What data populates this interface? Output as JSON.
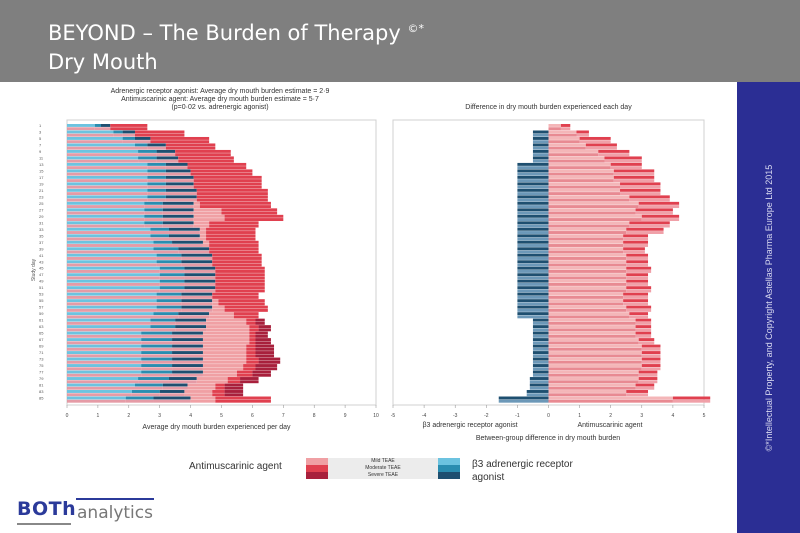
{
  "header": {
    "title_line1": "BEYOND – The Burden of Therapy",
    "title_sup": "©*",
    "title_line2": "Dry Mouth"
  },
  "sidebar": {
    "copyright": "©*Intellectual Property, and Copyright Astellas Pharma Europe Ltd 2015"
  },
  "logo": {
    "part1": "BOTh",
    "part2": "analytics"
  },
  "colors": {
    "header_bg": "#7f7f7f",
    "sidebar_bg": "#2b2e94",
    "anti_mild": "#f0a0a4",
    "anti_moderate": "#e0404f",
    "anti_severe": "#a8203c",
    "b3_mild": "#6cc3e0",
    "b3_moderate": "#2a8db0",
    "b3_severe": "#1e4f70"
  },
  "legend": {
    "left_label": "Antimuscarinic agent",
    "right_label_line1": "β3 adrenergic receptor",
    "right_label_line2": "agonist",
    "entries": [
      "Mild TEAE",
      "Moderate TEAE",
      "Severe TEAE"
    ]
  },
  "chart_data": [
    {
      "type": "bar",
      "orientation": "horizontal-stacked",
      "title_lines": [
        "Adrenergic receptor agonist: Average dry mouth burden estimate = 2·9",
        "Antimuscarinic agent: Average dry mouth burden estimate = 5·7",
        "(p=0·02 vs. adrenergic agonist)"
      ],
      "xlabel": "Average dry mouth burden experienced per day",
      "ylabel": "Study day",
      "xlim": [
        0,
        10
      ],
      "xticks": [
        "0",
        "1",
        "2",
        "3",
        "4",
        "5",
        "6",
        "7",
        "8",
        "9",
        "10"
      ],
      "ytick_labels": [
        "1",
        "3",
        "5",
        "7",
        "9",
        "11",
        "13",
        "15",
        "17",
        "19",
        "21",
        "23",
        "25",
        "27",
        "29",
        "31",
        "33",
        "35",
        "37",
        "39",
        "41",
        "43",
        "45",
        "47",
        "49",
        "51",
        "53",
        "55",
        "57",
        "59",
        "61",
        "63",
        "65",
        "67",
        "69",
        "71",
        "73",
        "75",
        "77",
        "79",
        "81",
        "83",
        "85"
      ],
      "grid": false,
      "days": [
        1,
        3,
        5,
        7,
        9,
        11,
        13,
        15,
        17,
        19,
        21,
        23,
        25,
        27,
        29,
        31,
        33,
        35,
        37,
        39,
        41,
        43,
        45,
        47,
        49,
        51,
        53,
        55,
        57,
        59,
        61,
        63,
        65,
        67,
        69,
        71,
        73,
        75,
        77,
        79,
        81,
        83,
        85
      ],
      "series": [
        {
          "name": "β3 agonist Mild TEAE",
          "values": [
            0.9,
            1.5,
            1.8,
            2.2,
            2.3,
            2.3,
            2.6,
            2.6,
            2.6,
            2.6,
            2.6,
            2.6,
            2.5,
            2.5,
            2.5,
            2.5,
            2.7,
            2.7,
            2.8,
            2.8,
            2.9,
            2.9,
            3.0,
            3.0,
            3.0,
            3.0,
            2.9,
            2.9,
            2.9,
            2.8,
            2.7,
            2.7,
            2.4,
            2.4,
            2.4,
            2.4,
            2.4,
            2.4,
            2.4,
            2.3,
            2.2,
            2.1,
            1.9
          ]
        },
        {
          "name": "β3 agonist Moderate TEAE",
          "values": [
            0.2,
            0.3,
            0.4,
            0.4,
            0.6,
            0.6,
            0.6,
            0.6,
            0.6,
            0.6,
            0.6,
            0.6,
            0.6,
            0.6,
            0.6,
            0.6,
            0.6,
            0.6,
            0.6,
            0.8,
            0.8,
            0.8,
            0.8,
            0.8,
            0.8,
            0.8,
            0.8,
            0.8,
            0.8,
            0.8,
            0.8,
            0.8,
            1.0,
            1.0,
            1.0,
            1.0,
            1.0,
            1.0,
            1.0,
            1.0,
            0.9,
            0.9,
            0.9
          ]
        },
        {
          "name": "β3 agonist Severe TEAE",
          "values": [
            0.3,
            0.4,
            0.5,
            0.6,
            0.6,
            0.7,
            0.7,
            0.8,
            0.9,
            0.9,
            1.0,
            1.0,
            1.0,
            1.0,
            1.0,
            1.0,
            1.0,
            1.0,
            1.0,
            1.0,
            1.0,
            1.0,
            1.0,
            1.0,
            1.0,
            1.0,
            1.0,
            1.0,
            1.0,
            1.0,
            1.0,
            1.0,
            1.0,
            1.0,
            1.0,
            1.0,
            1.0,
            1.0,
            1.0,
            0.9,
            0.8,
            0.8,
            1.2
          ]
        },
        {
          "name": "Antimuscarinic Mild TEAE",
          "values": [
            0.0,
            0.0,
            0.0,
            0.0,
            0.0,
            0.0,
            0.0,
            0.0,
            0.0,
            0.0,
            0.0,
            0.0,
            0.2,
            0.9,
            1.0,
            0.5,
            0.2,
            0.2,
            0.2,
            0.0,
            0.0,
            0.0,
            0.0,
            0.0,
            0.0,
            0.0,
            0.0,
            0.2,
            0.4,
            0.8,
            1.3,
            1.4,
            1.5,
            1.5,
            1.4,
            1.4,
            1.4,
            1.3,
            1.1,
            1.0,
            0.9,
            0.9,
            0.8
          ]
        },
        {
          "name": "Antimuscarinic Moderate TEAE",
          "values": [
            1.2,
            1.6,
            1.9,
            1.6,
            1.8,
            1.8,
            1.9,
            2.0,
            2.2,
            2.2,
            2.3,
            2.3,
            2.3,
            1.8,
            1.9,
            1.6,
            1.6,
            1.6,
            1.6,
            1.6,
            1.6,
            1.6,
            1.6,
            1.6,
            1.6,
            1.6,
            1.5,
            1.5,
            1.4,
            0.8,
            0.3,
            0.3,
            0.2,
            0.2,
            0.3,
            0.3,
            0.4,
            0.4,
            0.5,
            0.4,
            0.3,
            0.4,
            1.8
          ]
        },
        {
          "name": "Antimuscarinic Severe TEAE",
          "values": [
            0.0,
            0.0,
            0.0,
            0.0,
            0.0,
            0.0,
            0.0,
            0.0,
            0.0,
            0.0,
            0.0,
            0.0,
            0.0,
            0.0,
            0.0,
            0.0,
            0.0,
            0.0,
            0.0,
            0.0,
            0.0,
            0.0,
            0.0,
            0.0,
            0.0,
            0.0,
            0.0,
            0.0,
            0.0,
            0.0,
            0.3,
            0.4,
            0.4,
            0.5,
            0.6,
            0.6,
            0.7,
            0.7,
            0.6,
            0.6,
            0.6,
            0.6,
            0.0
          ]
        }
      ]
    },
    {
      "type": "bar",
      "orientation": "horizontal-diverging",
      "title": "Difference in dry mouth burden experienced each day",
      "xlabel": "Between-group difference in dry mouth burden",
      "xlabel_left": "β3 adrenergic receptor agonist",
      "xlabel_right": "Antimuscarinic agent",
      "xlim": [
        -5,
        5
      ],
      "xticks": [
        "-5",
        "-4",
        "-3",
        "-2",
        "-1",
        "0",
        "1",
        "2",
        "3",
        "4",
        "5"
      ],
      "grid": false,
      "days": [
        1,
        3,
        5,
        7,
        9,
        11,
        13,
        15,
        17,
        19,
        21,
        23,
        25,
        27,
        29,
        31,
        33,
        35,
        37,
        39,
        41,
        43,
        45,
        47,
        49,
        51,
        53,
        55,
        57,
        59,
        61,
        63,
        65,
        67,
        69,
        71,
        73,
        75,
        77,
        79,
        81,
        83,
        85
      ],
      "series": [
        {
          "name": "β3 agonist favoured",
          "values": [
            0.0,
            -0.5,
            -0.5,
            -0.5,
            -0.5,
            -0.5,
            -1.0,
            -1.0,
            -1.0,
            -1.0,
            -1.0,
            -1.0,
            -1.0,
            -1.0,
            -1.0,
            -1.0,
            -1.0,
            -1.0,
            -1.0,
            -1.0,
            -1.0,
            -1.0,
            -1.0,
            -1.0,
            -1.0,
            -1.0,
            -1.0,
            -1.0,
            -1.0,
            -1.0,
            -0.5,
            -0.5,
            -0.5,
            -0.5,
            -0.5,
            -0.5,
            -0.5,
            -0.5,
            -0.5,
            -0.6,
            -0.6,
            -0.7,
            -1.6
          ]
        },
        {
          "name": "Antimuscarinic mild difference",
          "values": [
            0.4,
            0.9,
            1.0,
            1.2,
            1.6,
            1.8,
            2.0,
            2.1,
            2.1,
            2.3,
            2.3,
            2.6,
            2.9,
            2.8,
            3.0,
            2.6,
            2.5,
            2.4,
            2.4,
            2.4,
            2.5,
            2.5,
            2.5,
            2.5,
            2.5,
            2.5,
            2.4,
            2.4,
            2.5,
            2.6,
            2.8,
            2.8,
            2.8,
            2.9,
            3.0,
            3.0,
            3.0,
            3.0,
            2.9,
            2.9,
            2.8,
            2.5,
            4.0
          ]
        },
        {
          "name": "Antimuscarinic moderate difference",
          "values": [
            0.3,
            0.4,
            1.0,
            1.0,
            1.0,
            1.2,
            1.0,
            1.3,
            1.3,
            1.3,
            1.3,
            1.3,
            1.3,
            1.2,
            1.2,
            1.3,
            1.2,
            0.8,
            0.8,
            0.7,
            0.7,
            0.7,
            0.8,
            0.7,
            0.7,
            0.8,
            0.8,
            0.8,
            0.8,
            0.6,
            0.5,
            0.5,
            0.5,
            0.5,
            0.6,
            0.6,
            0.6,
            0.6,
            0.6,
            0.6,
            0.6,
            0.7,
            1.2
          ]
        }
      ]
    }
  ]
}
